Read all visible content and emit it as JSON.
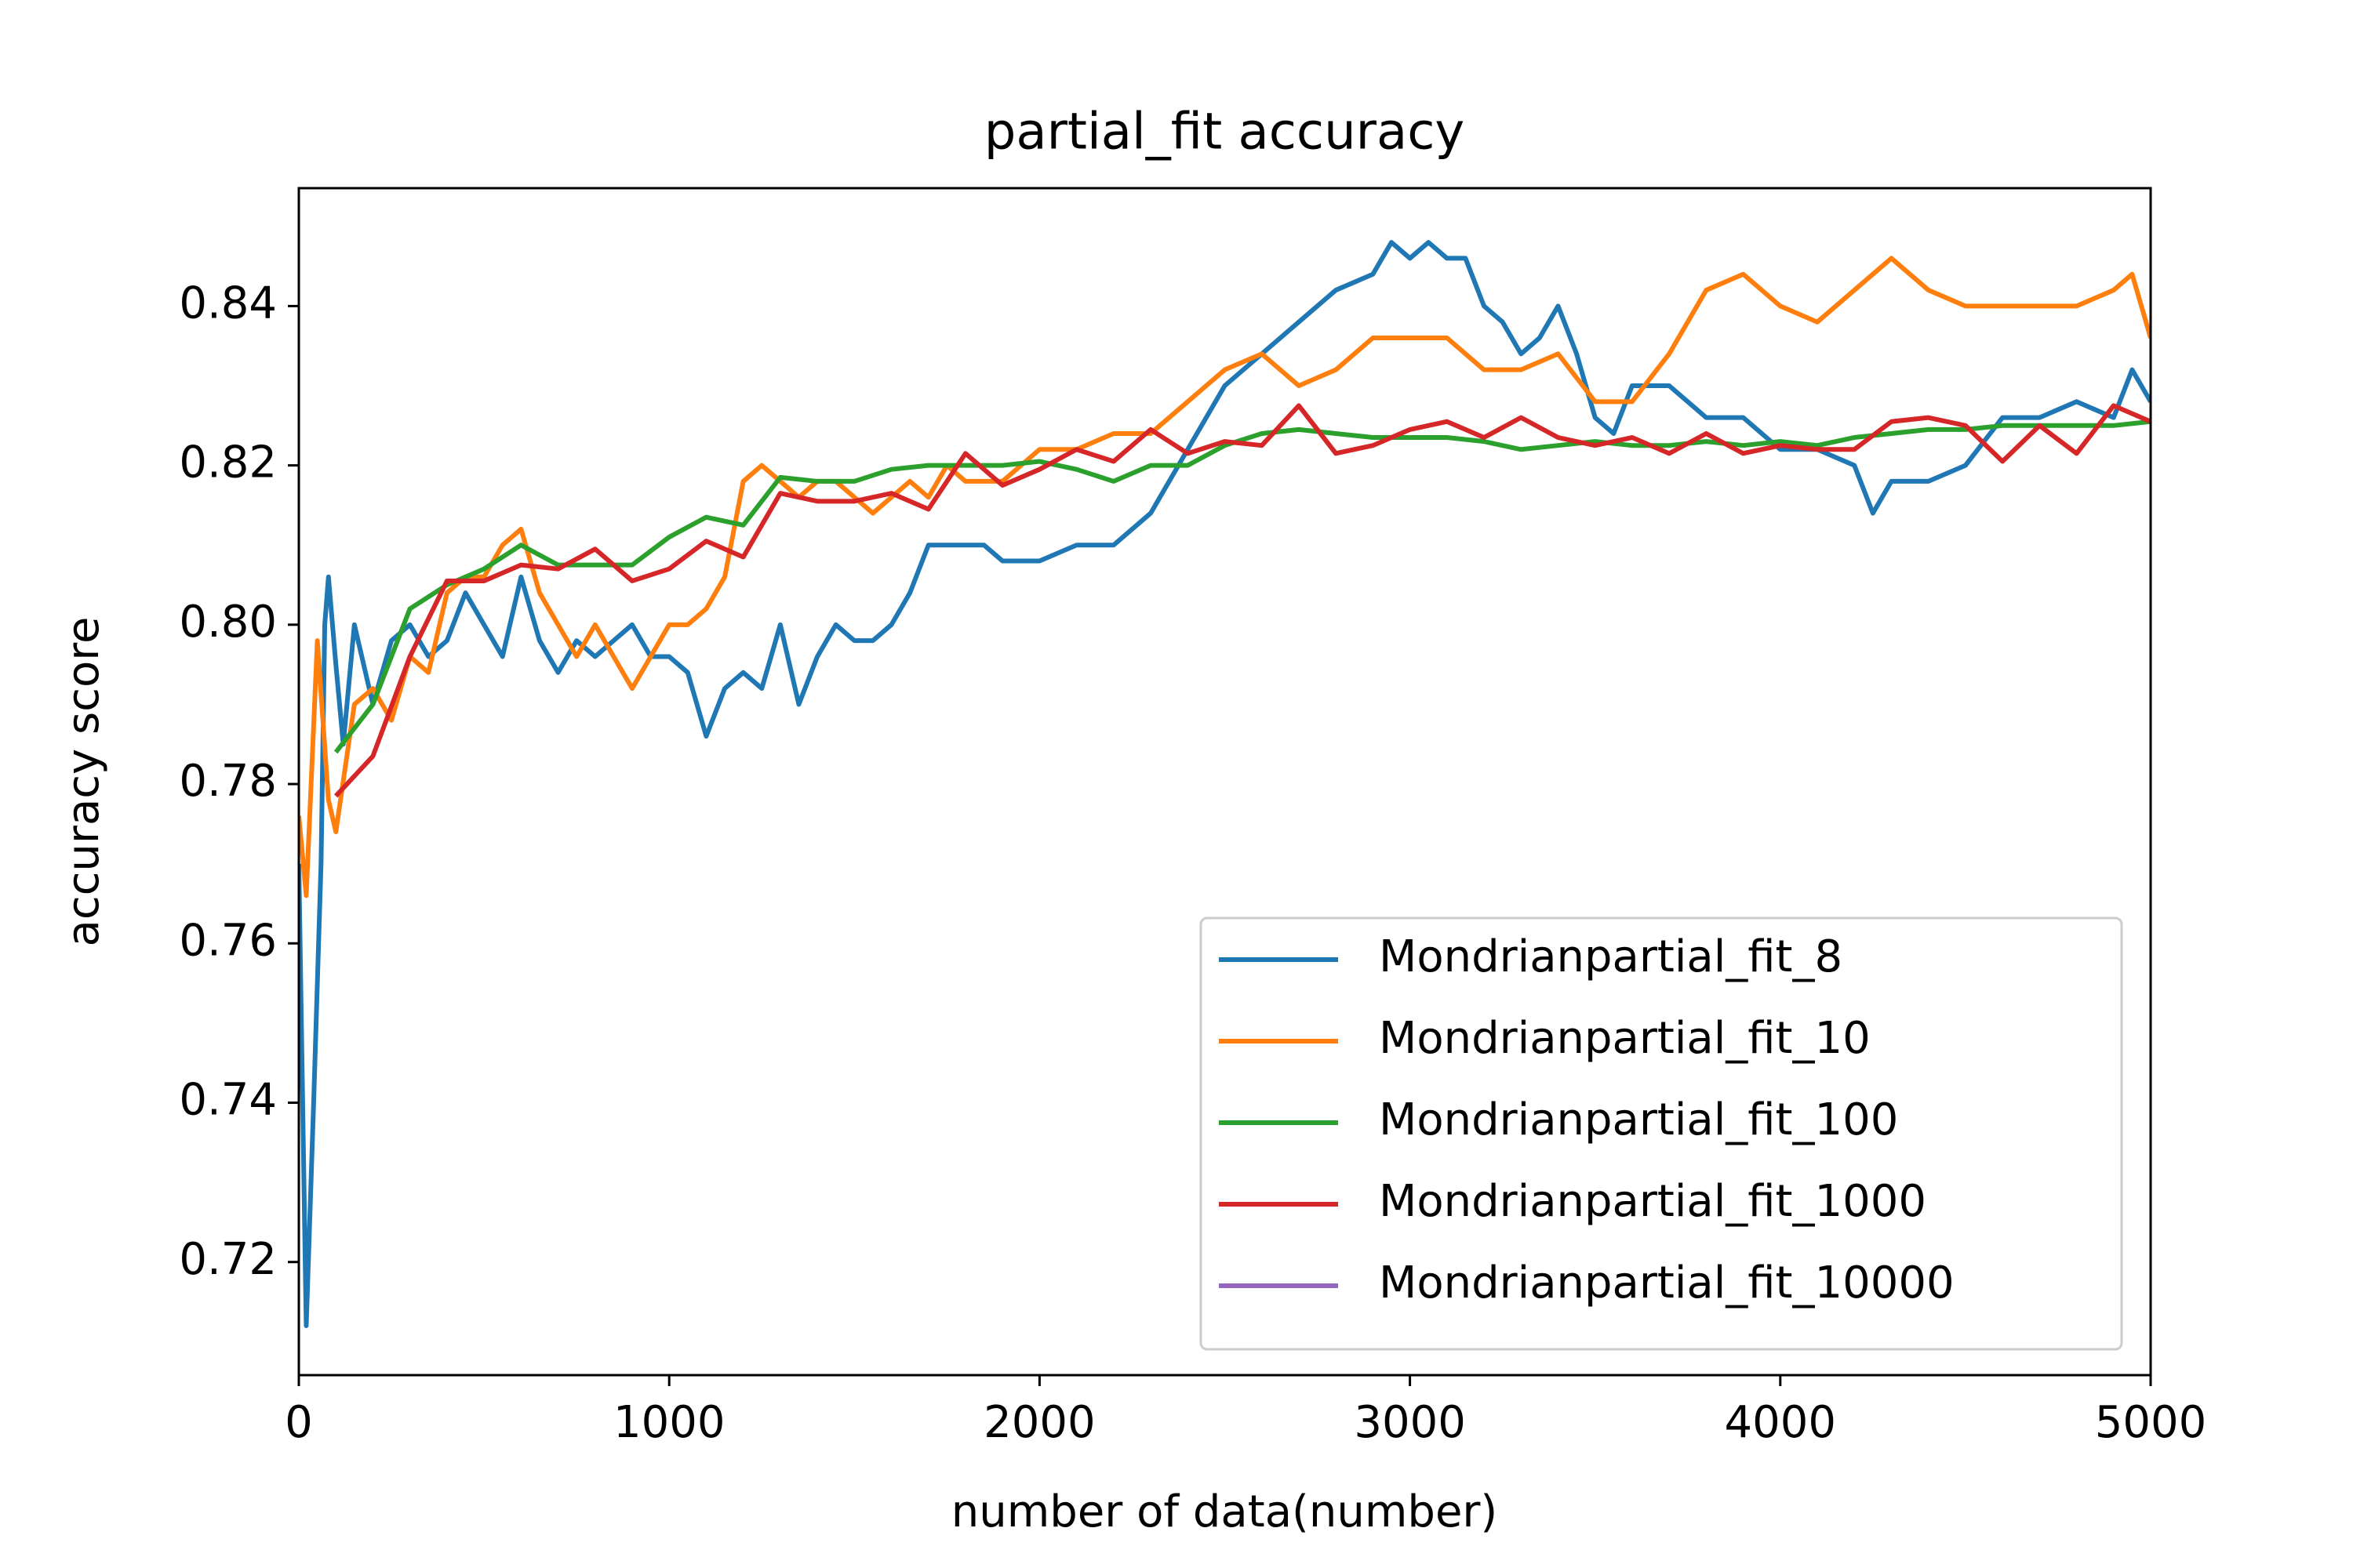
{
  "chart_data": {
    "type": "line",
    "title": "partial_fit accuracy",
    "xlabel": "number of data(number)",
    "ylabel": "accuracy score",
    "xlim": [
      0,
      5000
    ],
    "xticks": [
      0,
      1000,
      2000,
      3000,
      4000,
      5000
    ],
    "ylim": [
      0.7058,
      0.8548
    ],
    "yticks": [
      0.72,
      0.74,
      0.76,
      0.78,
      {
        "value": 0.8,
        "label": "0.80"
      },
      0.82,
      0.84
    ],
    "legend": "lower right",
    "series": [
      {
        "name": "Mondrianpartial_fit_8",
        "color": "#1f77b4",
        "x": [
          0,
          20,
          40,
          60,
          70,
          80,
          100,
          120,
          150,
          200,
          250,
          300,
          350,
          400,
          450,
          500,
          550,
          600,
          650,
          700,
          750,
          800,
          850,
          900,
          950,
          1000,
          1050,
          1100,
          1150,
          1200,
          1250,
          1300,
          1350,
          1400,
          1450,
          1500,
          1550,
          1600,
          1650,
          1700,
          1750,
          1800,
          1850,
          1900,
          1950,
          2000,
          2100,
          2200,
          2300,
          2400,
          2500,
          2600,
          2700,
          2800,
          2900,
          2950,
          3000,
          3050,
          3100,
          3150,
          3200,
          3250,
          3300,
          3350,
          3400,
          3450,
          3500,
          3550,
          3600,
          3700,
          3800,
          3900,
          4000,
          4100,
          4200,
          4250,
          4300,
          4400,
          4500,
          4600,
          4700,
          4800,
          4900,
          4950,
          5000
        ],
        "values": [
          0.77,
          0.712,
          0.74,
          0.77,
          0.8,
          0.806,
          0.795,
          0.785,
          0.8,
          0.79,
          0.798,
          0.8,
          0.796,
          0.798,
          0.804,
          0.8,
          0.796,
          0.806,
          0.798,
          0.794,
          0.798,
          0.796,
          0.798,
          0.8,
          0.796,
          0.796,
          0.794,
          0.786,
          0.792,
          0.794,
          0.792,
          0.8,
          0.79,
          0.796,
          0.8,
          0.798,
          0.798,
          0.8,
          0.804,
          0.81,
          0.81,
          0.81,
          0.81,
          0.808,
          0.808,
          0.808,
          0.81,
          0.81,
          0.814,
          0.822,
          0.83,
          0.834,
          0.838,
          0.842,
          0.844,
          0.848,
          0.846,
          0.848,
          0.846,
          0.846,
          0.84,
          0.838,
          0.834,
          0.836,
          0.84,
          0.834,
          0.826,
          0.824,
          0.83,
          0.83,
          0.826,
          0.826,
          0.822,
          0.822,
          0.82,
          0.814,
          0.818,
          0.818,
          0.82,
          0.826,
          0.826,
          0.828,
          0.826,
          0.832,
          0.828
        ]
      },
      {
        "name": "Mondrianpartial_fit_10",
        "color": "#ff7f0e",
        "x": [
          0,
          20,
          50,
          80,
          100,
          150,
          200,
          250,
          300,
          350,
          400,
          450,
          500,
          550,
          600,
          650,
          700,
          750,
          800,
          850,
          900,
          950,
          1000,
          1050,
          1100,
          1150,
          1200,
          1250,
          1300,
          1350,
          1400,
          1450,
          1500,
          1550,
          1600,
          1650,
          1700,
          1750,
          1800,
          1850,
          1900,
          1950,
          2000,
          2100,
          2200,
          2300,
          2400,
          2500,
          2600,
          2700,
          2800,
          2900,
          3000,
          3100,
          3200,
          3300,
          3400,
          3500,
          3600,
          3700,
          3800,
          3900,
          4000,
          4100,
          4200,
          4300,
          4400,
          4500,
          4600,
          4700,
          4800,
          4900,
          4950,
          5000
        ],
        "values": [
          0.776,
          0.766,
          0.798,
          0.778,
          0.774,
          0.79,
          0.792,
          0.788,
          0.796,
          0.794,
          0.804,
          0.806,
          0.806,
          0.81,
          0.812,
          0.804,
          0.8,
          0.796,
          0.8,
          0.796,
          0.792,
          0.796,
          0.8,
          0.8,
          0.802,
          0.806,
          0.818,
          0.82,
          0.818,
          0.816,
          0.818,
          0.818,
          0.816,
          0.814,
          0.816,
          0.818,
          0.816,
          0.82,
          0.818,
          0.818,
          0.818,
          0.82,
          0.822,
          0.822,
          0.824,
          0.824,
          0.828,
          0.832,
          0.834,
          0.83,
          0.832,
          0.836,
          0.836,
          0.836,
          0.832,
          0.832,
          0.834,
          0.828,
          0.828,
          0.834,
          0.842,
          0.844,
          0.84,
          0.838,
          0.842,
          0.846,
          0.842,
          0.84,
          0.84,
          0.84,
          0.84,
          0.842,
          0.844,
          0.836
        ]
      },
      {
        "name": "Mondrianpartial_fit_100",
        "color": "#2ca02c",
        "x": [
          100,
          200,
          300,
          400,
          500,
          600,
          700,
          800,
          900,
          1000,
          1100,
          1200,
          1300,
          1400,
          1500,
          1600,
          1700,
          1800,
          1900,
          2000,
          2100,
          2200,
          2300,
          2400,
          2500,
          2600,
          2700,
          2800,
          2900,
          3000,
          3100,
          3200,
          3300,
          3400,
          3500,
          3600,
          3700,
          3800,
          3900,
          4000,
          4100,
          4200,
          4300,
          4400,
          4500,
          4600,
          4700,
          4800,
          4900,
          5000
        ],
        "values": [
          0.784,
          0.79,
          0.802,
          0.805,
          0.807,
          0.81,
          0.8075,
          0.8075,
          0.8075,
          0.811,
          0.8135,
          0.8125,
          0.8185,
          0.818,
          0.818,
          0.8195,
          0.82,
          0.82,
          0.82,
          0.8205,
          0.8195,
          0.818,
          0.82,
          0.82,
          0.8225,
          0.824,
          0.8245,
          0.824,
          0.8235,
          0.8235,
          0.8235,
          0.823,
          0.822,
          0.8225,
          0.823,
          0.8225,
          0.8225,
          0.823,
          0.8225,
          0.823,
          0.8225,
          0.8235,
          0.824,
          0.8245,
          0.8245,
          0.825,
          0.825,
          0.825,
          0.825,
          0.8255
        ]
      },
      {
        "name": "Mondrianpartial_fit_1000",
        "color": "#d62728",
        "x": [
          100,
          200,
          300,
          400,
          500,
          600,
          700,
          800,
          900,
          1000,
          1100,
          1200,
          1300,
          1400,
          1500,
          1600,
          1700,
          1800,
          1900,
          2000,
          2100,
          2200,
          2300,
          2400,
          2500,
          2600,
          2700,
          2800,
          2900,
          3000,
          3100,
          3200,
          3300,
          3400,
          3500,
          3600,
          3700,
          3800,
          3900,
          4000,
          4100,
          4200,
          4300,
          4400,
          4500,
          4600,
          4700,
          4800,
          4900,
          5000
        ],
        "values": [
          0.7785,
          0.7835,
          0.796,
          0.8055,
          0.8055,
          0.8075,
          0.807,
          0.8095,
          0.8055,
          0.807,
          0.8105,
          0.8085,
          0.8165,
          0.8155,
          0.8155,
          0.8165,
          0.8145,
          0.8215,
          0.8175,
          0.8195,
          0.822,
          0.8205,
          0.8245,
          0.8215,
          0.823,
          0.8225,
          0.8275,
          0.8215,
          0.8225,
          0.8245,
          0.8255,
          0.8235,
          0.826,
          0.8235,
          0.8225,
          0.8235,
          0.8215,
          0.824,
          0.8215,
          0.8225,
          0.822,
          0.822,
          0.8255,
          0.826,
          0.825,
          0.8205,
          0.825,
          0.8215,
          0.8275,
          0.8255
        ]
      },
      {
        "name": "Mondrianpartial_fit_10000",
        "color": "#9467bd",
        "x": [],
        "values": []
      }
    ]
  }
}
